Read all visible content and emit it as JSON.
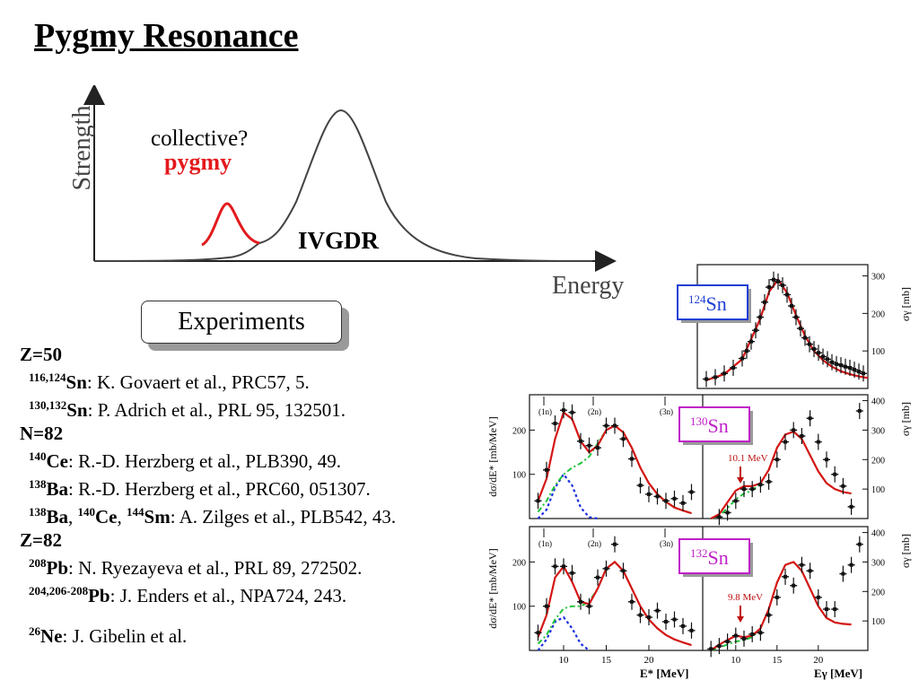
{
  "title": "Pygmy Resonance",
  "schematic": {
    "y_axis_label": "Strength",
    "x_axis_label": "Energy",
    "label_collective": "collective?",
    "label_pygmy": "pygmy",
    "label_ivgdr": "IVGDR",
    "pygmy_color": "#e3191c"
  },
  "experiments_label": "Experiments",
  "references": [
    {
      "type": "header",
      "text": "Z=50"
    },
    {
      "type": "ref",
      "parts": [
        {
          "sup": "116,124"
        },
        {
          "b": "Sn"
        },
        {
          "t": ": K. Govaert et al., PRC57, 5."
        }
      ]
    },
    {
      "type": "ref",
      "parts": [
        {
          "sup": "130,132"
        },
        {
          "b": "Sn"
        },
        {
          "t": ": P. Adrich et al., PRL 95, 132501."
        }
      ]
    },
    {
      "type": "header",
      "text": "N=82"
    },
    {
      "type": "ref",
      "parts": [
        {
          "sup": "140"
        },
        {
          "b": "Ce"
        },
        {
          "t": ": R.-D. Herzberg et al., PLB390, 49."
        }
      ]
    },
    {
      "type": "ref",
      "parts": [
        {
          "sup": "138"
        },
        {
          "b": "Ba"
        },
        {
          "t": ": R.-D. Herzberg et al., PRC60, 051307."
        }
      ]
    },
    {
      "type": "ref",
      "parts": [
        {
          "sup": "138"
        },
        {
          "b": "Ba"
        },
        {
          "t": ", "
        },
        {
          "sup": "140"
        },
        {
          "b": "Ce"
        },
        {
          "t": ", "
        },
        {
          "sup": "144"
        },
        {
          "b": "Sm"
        },
        {
          "t": ": A. Zilges et al., PLB542, 43."
        }
      ]
    },
    {
      "type": "header",
      "text": "Z=82"
    },
    {
      "type": "ref",
      "parts": [
        {
          "sup": "208"
        },
        {
          "b": "Pb"
        },
        {
          "t": ": N. Ryezayeva et al., PRL 89, 272502."
        }
      ]
    },
    {
      "type": "ref",
      "parts": [
        {
          "sup": "204,206-208"
        },
        {
          "b": "Pb"
        },
        {
          "t": ": J. Enders et al.,  NPA724, 243."
        }
      ]
    },
    {
      "type": "gap"
    },
    {
      "type": "ref",
      "parts": [
        {
          "sup": "26"
        },
        {
          "b": "Ne"
        },
        {
          "t": ": J. Gibelin et al."
        }
      ]
    }
  ],
  "chart_data": [
    {
      "type": "scatter",
      "panel": "124Sn",
      "label_mass": "124",
      "label_element": "Sn",
      "label_color": "#1f3fd6",
      "ylabel": "σγ [mb]",
      "ylim": [
        0,
        330
      ],
      "yticks": [
        100,
        200,
        300
      ],
      "xlim": [
        6,
        25
      ],
      "series": [
        {
          "values_x": [
            7,
            8,
            9,
            10,
            11,
            11.5,
            12,
            12.5,
            13,
            13.5,
            14,
            14.5,
            15,
            15.5,
            16,
            16.5,
            17,
            17.5,
            18,
            18.5,
            19,
            19.5,
            20,
            20.5,
            21,
            21.5,
            22,
            22.5,
            23,
            23.5,
            24,
            24.5
          ],
          "values_y": [
            25,
            30,
            40,
            55,
            80,
            100,
            125,
            155,
            190,
            230,
            270,
            290,
            285,
            275,
            250,
            220,
            190,
            160,
            135,
            118,
            105,
            95,
            85,
            78,
            70,
            65,
            62,
            58,
            55,
            50,
            45,
            40
          ]
        }
      ],
      "fit": [
        [
          7,
          22
        ],
        [
          9,
          38
        ],
        [
          11,
          78
        ],
        [
          13,
          185
        ],
        [
          14,
          258
        ],
        [
          15,
          290
        ],
        [
          16,
          255
        ],
        [
          17,
          195
        ],
        [
          18,
          140
        ],
        [
          19,
          100
        ],
        [
          20,
          75
        ],
        [
          21,
          58
        ],
        [
          22,
          46
        ],
        [
          23,
          38
        ],
        [
          24,
          32
        ],
        [
          25,
          28
        ]
      ]
    },
    {
      "type": "scatter",
      "panel": "130Sn",
      "label_mass": "130",
      "label_element": "Sn",
      "label_color": "#c020c8",
      "ylabel_left": "dσ/dE* [mb/MeV]",
      "ylabel_right": "σγ [mb]",
      "annotation": "10.1 MeV",
      "neutron_marks": [
        "(1n)",
        "(2n)",
        "(3n)"
      ],
      "left": {
        "xlim": [
          6,
          26
        ],
        "ylim": [
          0,
          280
        ],
        "yticks": [
          100,
          200
        ],
        "x": [
          7,
          8,
          9,
          10,
          11,
          12,
          13,
          14,
          15,
          16,
          17,
          18,
          19,
          20,
          21,
          22,
          23,
          24,
          25
        ],
        "y": [
          40,
          110,
          215,
          245,
          240,
          175,
          165,
          160,
          210,
          210,
          180,
          135,
          75,
          55,
          50,
          40,
          45,
          35,
          60
        ],
        "fit_total": [
          [
            7,
            40
          ],
          [
            8,
            90
          ],
          [
            9,
            180
          ],
          [
            10,
            240
          ],
          [
            11,
            225
          ],
          [
            12,
            175
          ],
          [
            13,
            150
          ],
          [
            14,
            165
          ],
          [
            15,
            200
          ],
          [
            16,
            210
          ],
          [
            17,
            195
          ],
          [
            18,
            160
          ],
          [
            19,
            115
          ],
          [
            20,
            80
          ],
          [
            21,
            55
          ],
          [
            22,
            38
          ],
          [
            23,
            25
          ],
          [
            24,
            18
          ],
          [
            25,
            12
          ]
        ],
        "fit_gdr": [
          [
            7,
            15
          ],
          [
            8,
            40
          ],
          [
            9,
            75
          ],
          [
            10,
            100
          ],
          [
            11,
            115
          ],
          [
            12,
            125
          ],
          [
            13,
            140
          ],
          [
            14,
            170
          ],
          [
            15,
            200
          ],
          [
            16,
            210
          ],
          [
            17,
            195
          ],
          [
            18,
            160
          ],
          [
            19,
            115
          ],
          [
            20,
            80
          ],
          [
            21,
            55
          ],
          [
            22,
            38
          ],
          [
            23,
            25
          ],
          [
            24,
            18
          ],
          [
            25,
            12
          ]
        ],
        "fit_pygmy": [
          [
            7,
            0
          ],
          [
            8,
            20
          ],
          [
            9,
            70
          ],
          [
            10,
            100
          ],
          [
            11,
            75
          ],
          [
            12,
            25
          ],
          [
            13,
            3
          ],
          [
            14,
            0
          ]
        ]
      },
      "right": {
        "xlim": [
          6,
          26
        ],
        "ylim": [
          0,
          420
        ],
        "yticks": [
          100,
          200,
          300,
          400
        ],
        "x": [
          8,
          9,
          10,
          11,
          12,
          13,
          14,
          15,
          16,
          17,
          18,
          19,
          20,
          21,
          22,
          23,
          24,
          25
        ],
        "y": [
          5,
          20,
          60,
          100,
          100,
          115,
          125,
          200,
          260,
          300,
          280,
          340,
          260,
          200,
          150,
          110,
          40,
          365
        ],
        "fit_total": [
          [
            7,
            0
          ],
          [
            8,
            15
          ],
          [
            9,
            55
          ],
          [
            10,
            95
          ],
          [
            11,
            110
          ],
          [
            12,
            110
          ],
          [
            13,
            120
          ],
          [
            14,
            165
          ],
          [
            15,
            240
          ],
          [
            16,
            285
          ],
          [
            17,
            295
          ],
          [
            18,
            270
          ],
          [
            19,
            215
          ],
          [
            20,
            160
          ],
          [
            21,
            120
          ],
          [
            22,
            100
          ],
          [
            23,
            90
          ],
          [
            24,
            85
          ]
        ],
        "fit_gdr": [
          [
            7,
            0
          ],
          [
            8,
            10
          ],
          [
            9,
            35
          ],
          [
            10,
            65
          ],
          [
            11,
            85
          ],
          [
            12,
            95
          ],
          [
            13,
            120
          ],
          [
            14,
            165
          ],
          [
            15,
            240
          ],
          [
            16,
            285
          ],
          [
            17,
            295
          ],
          [
            18,
            270
          ],
          [
            19,
            215
          ],
          [
            20,
            160
          ],
          [
            21,
            120
          ],
          [
            22,
            100
          ],
          [
            23,
            90
          ],
          [
            24,
            85
          ]
        ]
      }
    },
    {
      "type": "scatter",
      "panel": "132Sn",
      "label_mass": "132",
      "label_element": "Sn",
      "label_color": "#c020c8",
      "ylabel_left": "dσ/dE* [mb/MeV]",
      "ylabel_right": "σγ [mb]",
      "xlabel_left": "E* [MeV]",
      "xlabel_right": "Eγ [MeV]",
      "annotation": "9.8 MeV",
      "neutron_marks": [
        "(1n)",
        "(2n)",
        "(3n)"
      ],
      "left": {
        "xlim": [
          6,
          26
        ],
        "xticks": [
          10,
          15,
          20
        ],
        "ylim": [
          0,
          280
        ],
        "yticks": [
          100,
          200
        ],
        "x": [
          7,
          8,
          9,
          10,
          11,
          12,
          13,
          14,
          15,
          16,
          17,
          18,
          19,
          20,
          21,
          22,
          23,
          24,
          25
        ],
        "y": [
          40,
          100,
          190,
          190,
          175,
          110,
          100,
          165,
          185,
          240,
          180,
          110,
          80,
          75,
          90,
          65,
          70,
          55,
          45
        ],
        "fit_total": [
          [
            7,
            30
          ],
          [
            8,
            80
          ],
          [
            9,
            165
          ],
          [
            10,
            190
          ],
          [
            11,
            155
          ],
          [
            12,
            110
          ],
          [
            13,
            105
          ],
          [
            14,
            140
          ],
          [
            15,
            185
          ],
          [
            16,
            200
          ],
          [
            17,
            180
          ],
          [
            18,
            140
          ],
          [
            19,
            100
          ],
          [
            20,
            70
          ],
          [
            21,
            50
          ],
          [
            22,
            35
          ],
          [
            23,
            25
          ],
          [
            24,
            18
          ],
          [
            25,
            12
          ]
        ],
        "fit_gdr": [
          [
            7,
            15
          ],
          [
            8,
            35
          ],
          [
            9,
            70
          ],
          [
            10,
            95
          ],
          [
            11,
            100
          ],
          [
            12,
            100
          ],
          [
            13,
            110
          ],
          [
            14,
            140
          ],
          [
            15,
            185
          ],
          [
            16,
            200
          ],
          [
            17,
            180
          ],
          [
            18,
            140
          ],
          [
            19,
            100
          ],
          [
            20,
            70
          ],
          [
            21,
            50
          ],
          [
            22,
            35
          ],
          [
            23,
            25
          ],
          [
            24,
            18
          ],
          [
            25,
            12
          ]
        ],
        "fit_pygmy": [
          [
            7,
            0
          ],
          [
            8,
            25
          ],
          [
            9,
            65
          ],
          [
            10,
            75
          ],
          [
            11,
            50
          ],
          [
            12,
            15
          ],
          [
            13,
            0
          ]
        ]
      },
      "right": {
        "xlim": [
          6,
          26
        ],
        "xticks": [
          10,
          15,
          20
        ],
        "ylim": [
          0,
          420
        ],
        "yticks": [
          100,
          200,
          300,
          400
        ],
        "x": [
          7,
          8,
          9,
          10,
          11,
          12,
          13,
          14,
          15,
          16,
          17,
          18,
          19,
          20,
          21,
          22,
          23,
          24,
          25
        ],
        "y": [
          5,
          15,
          30,
          50,
          40,
          55,
          60,
          120,
          180,
          250,
          220,
          290,
          270,
          180,
          140,
          140,
          260,
          290,
          360
        ],
        "fit_total": [
          [
            7,
            0
          ],
          [
            8,
            20
          ],
          [
            9,
            35
          ],
          [
            10,
            50
          ],
          [
            11,
            45
          ],
          [
            12,
            50
          ],
          [
            13,
            75
          ],
          [
            14,
            140
          ],
          [
            15,
            230
          ],
          [
            16,
            290
          ],
          [
            17,
            300
          ],
          [
            18,
            270
          ],
          [
            19,
            210
          ],
          [
            20,
            150
          ],
          [
            21,
            110
          ],
          [
            22,
            95
          ],
          [
            23,
            90
          ],
          [
            24,
            88
          ]
        ],
        "fit_gdr": [
          [
            7,
            0
          ],
          [
            8,
            10
          ],
          [
            9,
            20
          ],
          [
            10,
            30
          ],
          [
            11,
            35
          ],
          [
            12,
            45
          ],
          [
            13,
            75
          ],
          [
            14,
            140
          ],
          [
            15,
            230
          ],
          [
            16,
            290
          ],
          [
            17,
            300
          ],
          [
            18,
            270
          ],
          [
            19,
            210
          ],
          [
            20,
            150
          ],
          [
            21,
            110
          ],
          [
            22,
            95
          ],
          [
            23,
            90
          ],
          [
            24,
            88
          ]
        ]
      }
    }
  ]
}
